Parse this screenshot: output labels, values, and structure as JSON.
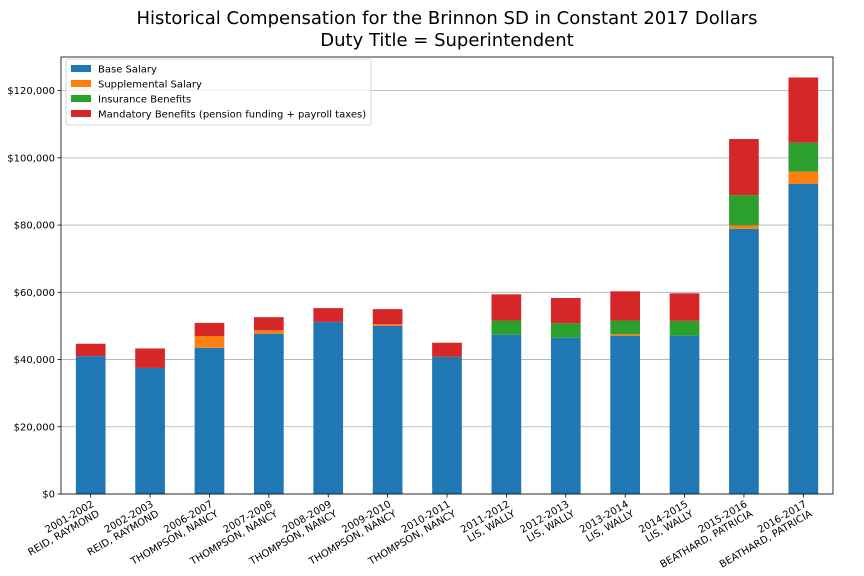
{
  "chart_data": {
    "type": "bar",
    "stacked": true,
    "title": "Historical Compensation for the Brinnon SD in Constant 2017 Dollars",
    "subtitle": "Duty Title = Superintendent",
    "categories": [
      [
        "2001-2002",
        "REID, RAYMOND"
      ],
      [
        "2002-2003",
        "REID, RAYMOND"
      ],
      [
        "2006-2007",
        "THOMPSON, NANCY"
      ],
      [
        "2007-2008",
        "THOMPSON, NANCY"
      ],
      [
        "2008-2009",
        "THOMPSON, NANCY"
      ],
      [
        "2009-2010",
        "THOMPSON, NANCY"
      ],
      [
        "2010-2011",
        "THOMPSON, NANCY"
      ],
      [
        "2011-2012",
        "LIS, WALLY"
      ],
      [
        "2012-2013",
        "LIS, WALLY"
      ],
      [
        "2013-2014",
        "LIS, WALLY"
      ],
      [
        "2014-2015",
        "LIS, WALLY"
      ],
      [
        "2015-2016",
        "BEATHARD, PATRICIA"
      ],
      [
        "2016-2017",
        "BEATHARD, PATRICIA"
      ]
    ],
    "series": [
      {
        "name": "Base Salary",
        "color": "#1f77b4",
        "values": [
          41000,
          37500,
          43500,
          47700,
          51200,
          50000,
          40800,
          47400,
          46500,
          47100,
          47100,
          78900,
          92300
        ]
      },
      {
        "name": "Supplemental Salary",
        "color": "#ff7f0e",
        "values": [
          0,
          0,
          3500,
          1000,
          0,
          500,
          0,
          0,
          0,
          500,
          0,
          1000,
          3600
        ]
      },
      {
        "name": "Insurance Benefits",
        "color": "#2ca02c",
        "values": [
          0,
          0,
          0,
          0,
          0,
          0,
          0,
          4200,
          4300,
          4000,
          4400,
          9000,
          8600
        ]
      },
      {
        "name": "Mandatory Benefits (pension funding + payroll taxes)",
        "color": "#d62728",
        "values": [
          3700,
          5800,
          3900,
          3900,
          4100,
          4500,
          4200,
          7800,
          7500,
          8700,
          8200,
          16700,
          19400
        ]
      }
    ],
    "ylim": [
      0,
      130000
    ],
    "yticks": [
      0,
      20000,
      40000,
      60000,
      80000,
      100000,
      120000
    ],
    "ytick_labels": [
      "$0",
      "$20,000",
      "$40,000",
      "$60,000",
      "$80,000",
      "$100,000",
      "$120,000"
    ],
    "grid": "y",
    "legend_position": "upper-left"
  }
}
